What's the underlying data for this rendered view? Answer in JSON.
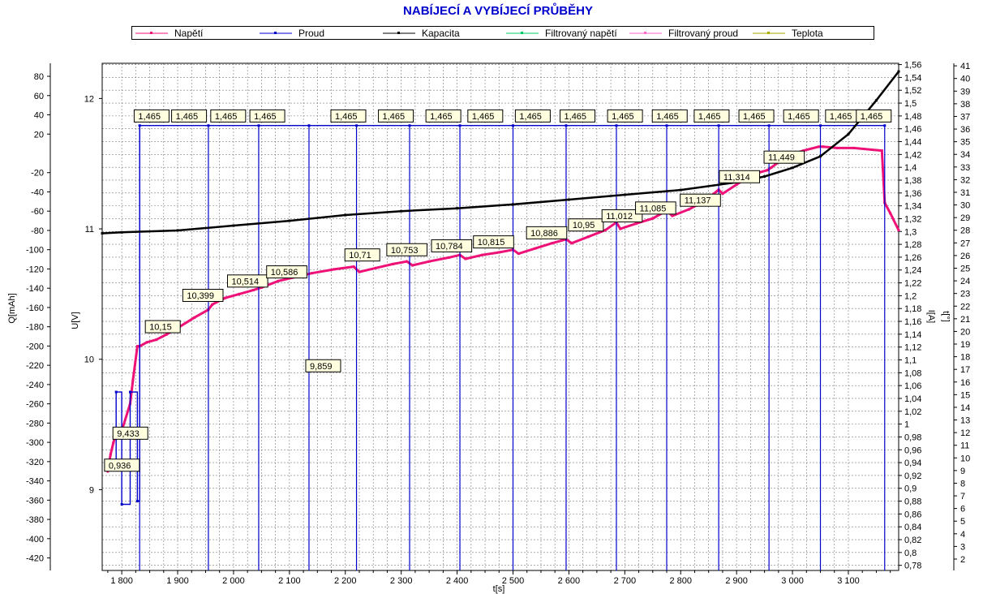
{
  "chart_data": {
    "type": "line",
    "title": "NABÍJECÍ A VYBÍJECÍ PRŮBĚHY",
    "xlabel": "t[s]",
    "xlim": [
      1765,
      3190
    ],
    "x_ticks": [
      1800,
      1900,
      2000,
      2100,
      2200,
      2300,
      2400,
      2500,
      2600,
      2700,
      2800,
      2900,
      3000,
      3100
    ],
    "x_tick_labels": [
      "1 800",
      "1 900",
      "2 000",
      "2 100",
      "2 200",
      "2 300",
      "2 400",
      "2 500",
      "2 600",
      "2 700",
      "2 800",
      "2 900",
      "3 000",
      "3 100"
    ],
    "axes": {
      "capacity": {
        "label": "Q[mAh]",
        "range": [
          -433,
          93.5
        ],
        "ticks": [
          80,
          60,
          40,
          20,
          -20,
          -40,
          -60,
          -80,
          -100,
          -120,
          -140,
          -160,
          -180,
          -200,
          -220,
          -240,
          -260,
          -280,
          -300,
          -320,
          -340,
          -360,
          -380,
          -400,
          -420
        ]
      },
      "voltage": {
        "label": "U[V]",
        "range": [
          8.38,
          12.27
        ],
        "ticks": [
          12,
          11,
          10,
          9
        ],
        "tick_labels": [
          "12",
          "11",
          "10",
          "9"
        ]
      },
      "current": {
        "label": "I[A]",
        "range": [
          0.772,
          1.562
        ],
        "ticks": [
          1.56,
          1.54,
          1.52,
          1.5,
          1.48,
          1.46,
          1.44,
          1.42,
          1.4,
          1.38,
          1.36,
          1.34,
          1.32,
          1.3,
          1.28,
          1.26,
          1.24,
          1.22,
          1.2,
          1.18,
          1.16,
          1.14,
          1.12,
          1.1,
          1.08,
          1.06,
          1.04,
          1.02,
          1,
          0.98,
          0.96,
          0.94,
          0.92,
          0.9,
          0.88,
          0.86,
          0.84,
          0.82,
          0.8,
          0.78
        ],
        "tick_labels": [
          "1,56",
          "1,54",
          "1,52",
          "1,5",
          "1,48",
          "1,46",
          "1,44",
          "1,42",
          "1,4",
          "1,38",
          "1,36",
          "1,34",
          "1,32",
          "1,3",
          "1,28",
          "1,26",
          "1,24",
          "1,22",
          "1,2",
          "1,18",
          "1,16",
          "1,14",
          "1,12",
          "1,1",
          "1,08",
          "1,06",
          "1,04",
          "1,02",
          "1",
          "0,98",
          "0,96",
          "0,94",
          "0,92",
          "0,9",
          "0,88",
          "0,86",
          "0,84",
          "0,82",
          "0,8",
          "0,78"
        ]
      },
      "temperature": {
        "label": "t[°]",
        "range": [
          1.1,
          41.2
        ],
        "ticks": [
          41,
          40,
          39,
          38,
          37,
          36,
          35,
          34,
          33,
          32,
          31,
          30,
          29,
          28,
          27,
          26,
          25,
          24,
          23,
          22,
          21,
          20,
          19,
          18,
          17,
          16,
          15,
          14,
          13,
          12,
          11,
          10,
          9,
          8,
          7,
          6,
          5,
          4,
          3,
          2
        ]
      }
    },
    "grid": true,
    "legend_position": "top",
    "series": [
      {
        "name": "Napětí",
        "color": "#ee1177",
        "axis": "voltage",
        "x": [
          1775,
          1780,
          1785,
          1790,
          1800,
          1815,
          1820,
          1828,
          1832,
          1845,
          1862,
          1880,
          1900,
          1930,
          1955,
          1962,
          1985,
          2010,
          2035,
          2050,
          2080,
          2110,
          2140,
          2180,
          2215,
          2225,
          2255,
          2285,
          2310,
          2320,
          2350,
          2385,
          2405,
          2415,
          2445,
          2475,
          2500,
          2510,
          2540,
          2570,
          2595,
          2605,
          2635,
          2665,
          2685,
          2692,
          2720,
          2750,
          2775,
          2785,
          2815,
          2845,
          2868,
          2875,
          2900,
          2930,
          2955,
          2962,
          2990,
          3020,
          3047,
          3055,
          3080,
          3110,
          3160,
          3165,
          3175,
          3190
        ],
        "y": [
          9.14,
          9.27,
          9.36,
          9.43,
          9.45,
          9.66,
          9.84,
          10.1,
          10.1,
          10.13,
          10.15,
          10.19,
          10.24,
          10.32,
          10.38,
          10.42,
          10.47,
          10.5,
          10.53,
          10.55,
          10.6,
          10.63,
          10.66,
          10.69,
          10.71,
          10.67,
          10.7,
          10.73,
          10.75,
          10.72,
          10.75,
          10.78,
          10.8,
          10.77,
          10.8,
          10.82,
          10.84,
          10.81,
          10.85,
          10.89,
          10.92,
          10.89,
          10.94,
          10.99,
          11.05,
          11.0,
          11.04,
          11.08,
          11.14,
          11.1,
          11.15,
          11.22,
          11.3,
          11.27,
          11.34,
          11.42,
          11.45,
          11.47,
          11.56,
          11.6,
          11.63,
          11.63,
          11.62,
          11.62,
          11.6,
          11.2,
          11.12,
          10.99
        ]
      },
      {
        "name": "Proud",
        "color": "#0000cc",
        "axis": "current",
        "x": [
          1775,
          1790,
          1800,
          1815,
          1828,
          1832,
          1955,
          2045,
          2135,
          2220,
          2315,
          2405,
          2500,
          2595,
          2685,
          2775,
          2868,
          2958,
          3050,
          3165
        ],
        "y": [
          0.936,
          1.05,
          0.875,
          1.05,
          0.88,
          1.465,
          1.465,
          1.465,
          1.465,
          1.465,
          1.465,
          1.465,
          1.465,
          1.465,
          1.465,
          1.465,
          1.465,
          1.465,
          1.465,
          1.465
        ]
      },
      {
        "name": "Kapacita",
        "color": "#000000",
        "axis": "capacity",
        "x": [
          1765,
          1800,
          1900,
          2000,
          2100,
          2200,
          2300,
          2400,
          2500,
          2600,
          2700,
          2800,
          2900,
          2950,
          3000,
          3050,
          3100,
          3150,
          3190
        ],
        "y": [
          -83,
          -82,
          -80,
          -75,
          -70,
          -64,
          -60,
          -57,
          -53,
          -48,
          -43,
          -38,
          -30,
          -24,
          -15,
          -3,
          20,
          55,
          85
        ]
      },
      {
        "name": "Filtrovaný napětí",
        "color": "#00cc66",
        "axis": "voltage",
        "x": [],
        "y": []
      },
      {
        "name": "Filtrovaný proud",
        "color": "#ff66cc",
        "axis": "current",
        "x": [],
        "y": []
      },
      {
        "name": "Teplota",
        "color": "#aaaa00",
        "axis": "temperature",
        "x": [],
        "y": []
      }
    ],
    "annotations": [
      {
        "text": "9,433",
        "x": 1790,
        "axis": "voltage",
        "y": 9.433
      },
      {
        "text": "0,936",
        "x": 1775,
        "axis": "current",
        "y": 0.936
      },
      {
        "text": "10,15",
        "x": 1848,
        "axis": "voltage",
        "y": 10.25
      },
      {
        "text": "10,399",
        "x": 1915,
        "axis": "voltage",
        "y": 10.49
      },
      {
        "text": "10,514",
        "x": 1995,
        "axis": "voltage",
        "y": 10.6
      },
      {
        "text": "10,586",
        "x": 2065,
        "axis": "voltage",
        "y": 10.67
      },
      {
        "text": "9,859",
        "x": 2135,
        "axis": "voltage",
        "y": 9.95
      },
      {
        "text": "10,71",
        "x": 2205,
        "axis": "voltage",
        "y": 10.8
      },
      {
        "text": "10,753",
        "x": 2280,
        "axis": "voltage",
        "y": 10.84
      },
      {
        "text": "10,784",
        "x": 2360,
        "axis": "voltage",
        "y": 10.87
      },
      {
        "text": "10,815",
        "x": 2435,
        "axis": "voltage",
        "y": 10.9
      },
      {
        "text": "10,886",
        "x": 2530,
        "axis": "voltage",
        "y": 10.97
      },
      {
        "text": "10,95",
        "x": 2605,
        "axis": "voltage",
        "y": 11.03
      },
      {
        "text": "11,012",
        "x": 2665,
        "axis": "voltage",
        "y": 11.1
      },
      {
        "text": "11,085",
        "x": 2725,
        "axis": "voltage",
        "y": 11.16
      },
      {
        "text": "11,137",
        "x": 2805,
        "axis": "voltage",
        "y": 11.22
      },
      {
        "text": "11,314",
        "x": 2875,
        "axis": "voltage",
        "y": 11.4
      },
      {
        "text": "11,449",
        "x": 2955,
        "axis": "voltage",
        "y": 11.55
      },
      {
        "text": "1,465",
        "x": 1828,
        "axis": "current",
        "y": 1.48
      },
      {
        "text": "1,465",
        "x": 1895,
        "axis": "current",
        "y": 1.48
      },
      {
        "text": "1,465",
        "x": 1965,
        "axis": "current",
        "y": 1.48
      },
      {
        "text": "1,465",
        "x": 2035,
        "axis": "current",
        "y": 1.48
      },
      {
        "text": "1,465",
        "x": 2180,
        "axis": "current",
        "y": 1.48
      },
      {
        "text": "1,465",
        "x": 2265,
        "axis": "current",
        "y": 1.48
      },
      {
        "text": "1,465",
        "x": 2350,
        "axis": "current",
        "y": 1.48
      },
      {
        "text": "1,465",
        "x": 2425,
        "axis": "current",
        "y": 1.48
      },
      {
        "text": "1,465",
        "x": 2510,
        "axis": "current",
        "y": 1.48
      },
      {
        "text": "1,465",
        "x": 2590,
        "axis": "current",
        "y": 1.48
      },
      {
        "text": "1,465",
        "x": 2675,
        "axis": "current",
        "y": 1.48
      },
      {
        "text": "1,465",
        "x": 2755,
        "axis": "current",
        "y": 1.48
      },
      {
        "text": "1,465",
        "x": 2830,
        "axis": "current",
        "y": 1.48
      },
      {
        "text": "1,465",
        "x": 2910,
        "axis": "current",
        "y": 1.48
      },
      {
        "text": "1,465",
        "x": 2990,
        "axis": "current",
        "y": 1.48
      },
      {
        "text": "1,465",
        "x": 3065,
        "axis": "current",
        "y": 1.48
      },
      {
        "text": "1,465",
        "x": 3120,
        "axis": "current",
        "y": 1.48
      }
    ]
  }
}
